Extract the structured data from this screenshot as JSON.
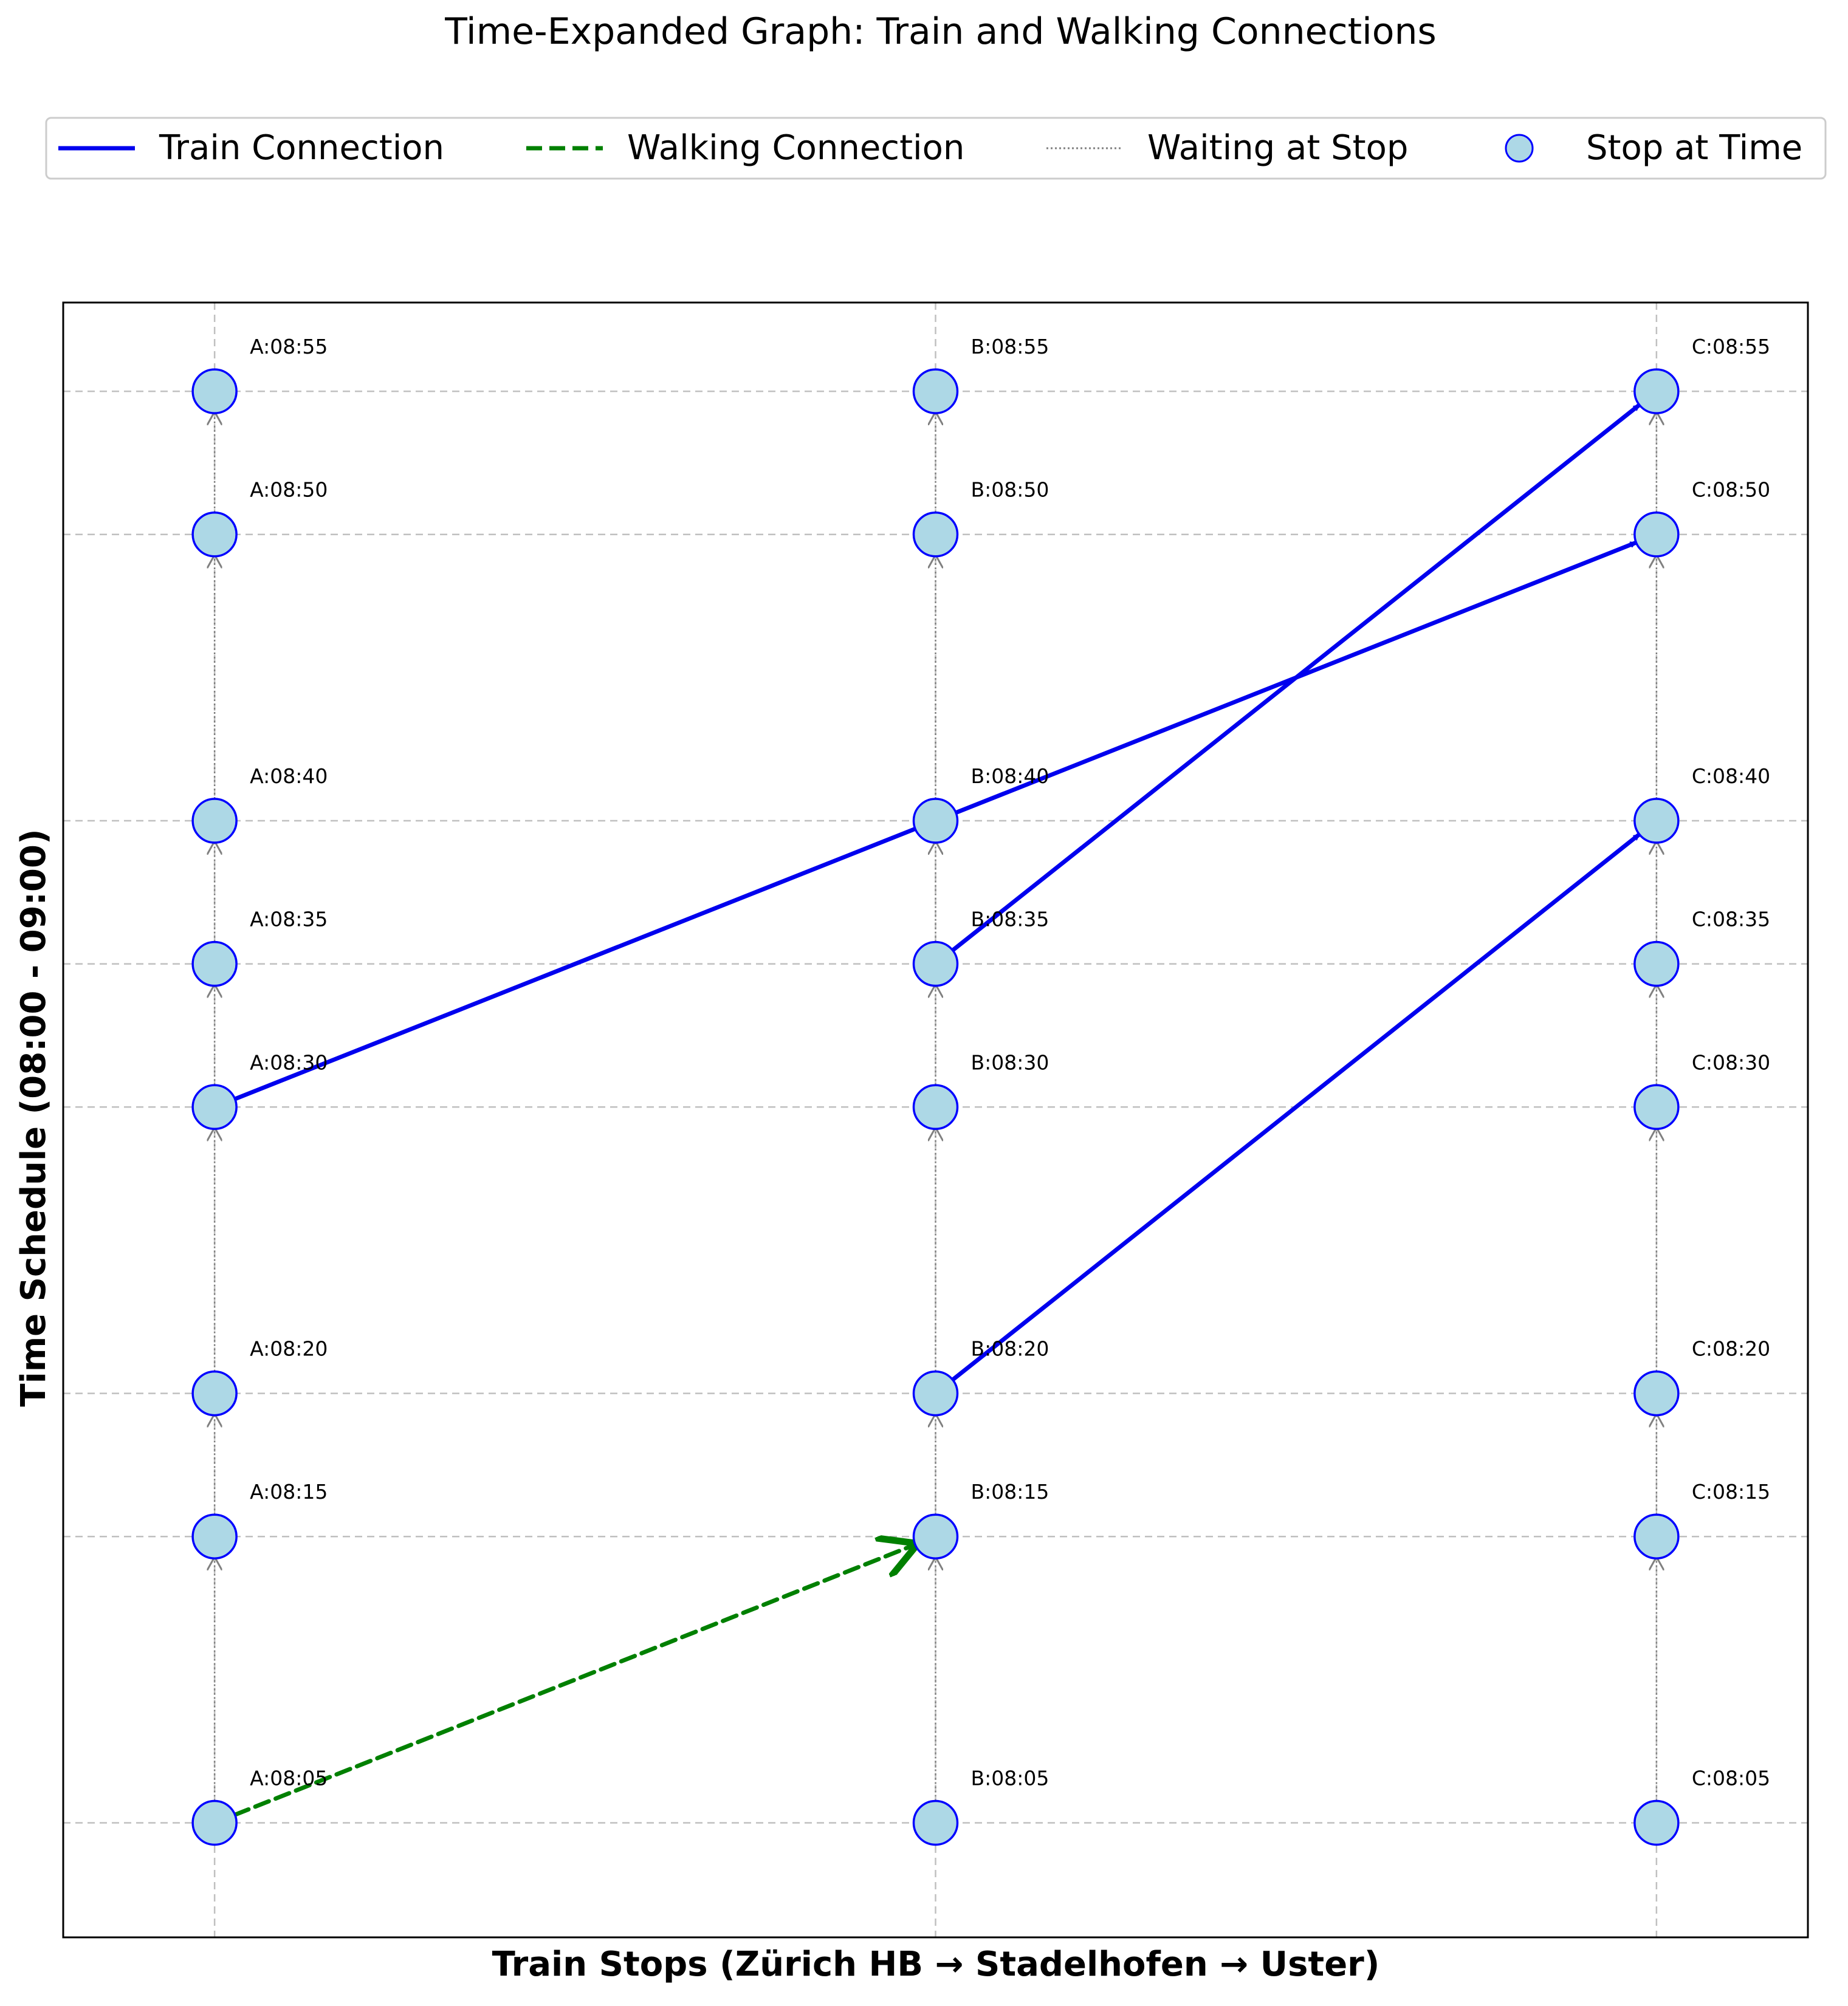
{
  "chart_data": {
    "type": "scatter",
    "title": "Time-Expanded Graph: Train and Walking Connections",
    "xlabel": "Train Stops (Zürich HB → Stadelhofen → Uster)",
    "ylabel": "Time Schedule (08:00 - 09:00)",
    "x_categories": [
      "A",
      "B",
      "C"
    ],
    "xlim": [
      -0.21,
      2.21
    ],
    "ylim": [
      1,
      58.1
    ],
    "grid": true,
    "legend": {
      "placement": "top-center",
      "entries": [
        "Train Connection",
        "Walking Connection",
        "Waiting at Stop",
        "Stop at Time"
      ]
    },
    "colors": {
      "train": "#0000ee",
      "walking": "#008000",
      "waiting": "#808080",
      "node_fill": "#add8e6",
      "node_edge": "#0000ff",
      "grid": "#c0c0c0"
    },
    "stops": [
      {
        "name": "A",
        "x": 0,
        "times": [
          5,
          15,
          20,
          30,
          35,
          40,
          50,
          55
        ]
      },
      {
        "name": "B",
        "x": 1,
        "times": [
          5,
          15,
          20,
          30,
          35,
          40,
          50,
          55
        ]
      },
      {
        "name": "C",
        "x": 2,
        "times": [
          5,
          15,
          20,
          30,
          35,
          40,
          50,
          55
        ]
      }
    ],
    "node_labels": [
      "A:08:05",
      "A:08:15",
      "A:08:20",
      "A:08:30",
      "A:08:35",
      "A:08:40",
      "A:08:50",
      "A:08:55",
      "B:08:05",
      "B:08:15",
      "B:08:20",
      "B:08:30",
      "B:08:35",
      "B:08:40",
      "B:08:50",
      "B:08:55",
      "C:08:05",
      "C:08:15",
      "C:08:20",
      "C:08:30",
      "C:08:35",
      "C:08:40",
      "C:08:50",
      "C:08:55"
    ],
    "train_connections": [
      {
        "from": "A:08:30",
        "via": "B:08:40",
        "to": "C:08:50"
      },
      {
        "from": "B:08:35",
        "to": "C:08:55"
      },
      {
        "from": "B:08:20",
        "to": "C:08:40"
      }
    ],
    "walking_connections": [
      {
        "from": "A:08:05",
        "to": "B:08:15"
      }
    ]
  }
}
